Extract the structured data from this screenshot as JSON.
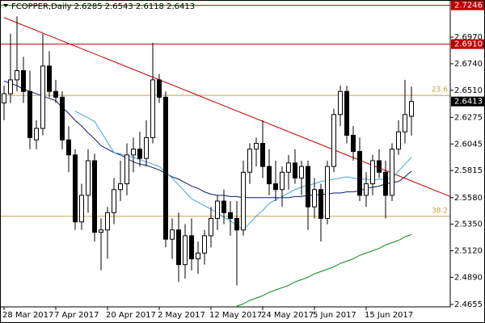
{
  "chart_data": {
    "type": "candlestick",
    "title": "FCOPPER,Daily  2.6285 2.6543 2.6118 2.6413",
    "categories": [
      "28 Mar 2017",
      null,
      null,
      null,
      null,
      null,
      null,
      null,
      "7 Apr 2017",
      null,
      null,
      null,
      null,
      null,
      null,
      null,
      "20 Apr 2017",
      null,
      null,
      null,
      null,
      null,
      null,
      null,
      "2 May 2017",
      null,
      null,
      null,
      null,
      null,
      null,
      null,
      "12 May 2017",
      null,
      null,
      null,
      null,
      null,
      null,
      null,
      "24 May 2017",
      null,
      null,
      null,
      null,
      null,
      null,
      null,
      "5 Jun 2017",
      null,
      null,
      null,
      null,
      null,
      null,
      null,
      "15 Jun 2017",
      null,
      null,
      null,
      null,
      null,
      null,
      null
    ],
    "open": [
      2.64,
      2.648,
      2.66,
      2.668,
      2.65,
      2.608,
      2.618,
      2.672,
      2.65,
      2.645,
      2.608,
      2.595,
      2.537,
      2.56,
      2.59,
      2.528,
      2.53,
      2.545,
      2.565,
      2.57,
      2.595,
      2.6,
      2.592,
      2.61,
      2.66,
      2.645,
      2.522,
      2.53,
      2.5,
      2.525,
      2.505,
      2.51,
      2.525,
      2.54,
      2.555,
      2.545,
      2.54,
      2.53,
      2.58,
      2.6,
      2.605,
      2.585,
      2.57,
      2.565,
      2.58,
      2.588,
      2.575,
      2.585,
      2.55,
      2.565,
      2.54,
      2.585,
      2.63,
      2.65,
      2.612,
      2.598,
      2.56,
      2.57,
      2.59,
      2.58,
      2.56,
      2.6,
      2.615,
      2.6285
    ],
    "high": [
      2.655,
      2.7,
      2.715,
      2.68,
      2.668,
      2.625,
      2.7,
      2.685,
      2.66,
      2.65,
      2.62,
      2.6,
      2.57,
      2.6,
      2.596,
      2.54,
      2.55,
      2.575,
      2.59,
      2.605,
      2.61,
      2.615,
      2.625,
      2.692,
      2.665,
      2.65,
      2.54,
      2.545,
      2.535,
      2.54,
      2.52,
      2.53,
      2.55,
      2.56,
      2.565,
      2.555,
      2.555,
      2.59,
      2.605,
      2.61,
      2.625,
      2.6,
      2.59,
      2.585,
      2.595,
      2.6,
      2.59,
      2.59,
      2.575,
      2.57,
      2.59,
      2.635,
      2.655,
      2.655,
      2.62,
      2.61,
      2.58,
      2.595,
      2.6,
      2.59,
      2.605,
      2.625,
      2.66,
      2.6543
    ],
    "low": [
      2.625,
      2.64,
      2.65,
      2.64,
      2.6,
      2.6,
      2.612,
      2.645,
      2.64,
      2.6,
      2.58,
      2.53,
      2.53,
      2.545,
      2.52,
      2.495,
      2.505,
      2.535,
      2.555,
      2.56,
      2.58,
      2.585,
      2.585,
      2.605,
      2.64,
      2.515,
      2.505,
      2.485,
      2.488,
      2.495,
      2.492,
      2.5,
      2.515,
      2.53,
      2.535,
      2.525,
      2.482,
      2.525,
      2.57,
      2.585,
      2.575,
      2.56,
      2.555,
      2.55,
      2.565,
      2.57,
      2.56,
      2.53,
      2.54,
      2.52,
      2.535,
      2.58,
      2.62,
      2.605,
      2.59,
      2.555,
      2.55,
      2.56,
      2.575,
      2.54,
      2.555,
      2.595,
      2.605,
      2.6118
    ],
    "close": [
      2.648,
      2.66,
      2.668,
      2.65,
      2.61,
      2.618,
      2.672,
      2.65,
      2.645,
      2.608,
      2.595,
      2.537,
      2.56,
      2.59,
      2.528,
      2.53,
      2.545,
      2.565,
      2.57,
      2.595,
      2.6,
      2.592,
      2.61,
      2.66,
      2.645,
      2.522,
      2.53,
      2.5,
      2.525,
      2.505,
      2.51,
      2.525,
      2.54,
      2.555,
      2.545,
      2.54,
      2.53,
      2.58,
      2.6,
      2.605,
      2.585,
      2.57,
      2.565,
      2.58,
      2.588,
      2.575,
      2.585,
      2.55,
      2.565,
      2.54,
      2.585,
      2.63,
      2.65,
      2.612,
      2.598,
      2.56,
      2.57,
      2.59,
      2.58,
      2.56,
      2.6,
      2.615,
      2.63,
      2.6413
    ],
    "up_color": "#ffffff",
    "down_color": "#000000",
    "overlays": [
      {
        "color": "#0a1a6e",
        "values": [
          2.659,
          2.657,
          2.655,
          2.652,
          2.65,
          2.648,
          2.646,
          2.644,
          2.642,
          2.636,
          2.631,
          2.625,
          2.62,
          2.614,
          2.609,
          2.603,
          2.6,
          2.597,
          2.595,
          2.592,
          2.589,
          2.587,
          2.586,
          2.584,
          2.582,
          2.579,
          2.576,
          2.574,
          2.571,
          2.568,
          2.566,
          2.563,
          2.561,
          2.56,
          2.56,
          2.559,
          2.559,
          2.558,
          2.558,
          2.558,
          2.558,
          2.558,
          2.558,
          2.558,
          2.558,
          2.559,
          2.559,
          2.56,
          2.56,
          2.561,
          2.561,
          2.562,
          2.562,
          2.563,
          2.563,
          2.564,
          2.566,
          2.567,
          2.568,
          2.57,
          2.571,
          2.572,
          2.576,
          2.581
        ]
      },
      {
        "color": "#40a8d8",
        "values": [
          null,
          null,
          null,
          null,
          null,
          null,
          null,
          null,
          null,
          null,
          null,
          2.633,
          2.63,
          2.627,
          2.624,
          2.615,
          2.606,
          2.597,
          2.596,
          2.594,
          2.593,
          2.591,
          2.589,
          2.587,
          2.585,
          2.58,
          2.575,
          2.569,
          2.563,
          2.557,
          2.554,
          2.551,
          2.548,
          2.545,
          2.541,
          2.538,
          2.534,
          2.53,
          2.536,
          2.542,
          2.547,
          2.553,
          2.556,
          2.559,
          2.562,
          2.565,
          2.567,
          2.569,
          2.57,
          2.572,
          2.573,
          2.574,
          2.575,
          2.576,
          2.575,
          2.574,
          2.574,
          2.573,
          2.574,
          2.574,
          2.575,
          2.581,
          2.587,
          2.593
        ]
      },
      {
        "color": "#0a8a1a",
        "values": [
          null,
          null,
          null,
          null,
          null,
          null,
          null,
          null,
          null,
          null,
          null,
          null,
          null,
          null,
          null,
          null,
          null,
          null,
          null,
          null,
          null,
          null,
          null,
          null,
          null,
          null,
          null,
          null,
          null,
          null,
          null,
          null,
          null,
          null,
          null,
          null,
          2.464,
          2.466,
          2.469,
          2.471,
          2.473,
          2.476,
          2.478,
          2.48,
          2.482,
          2.485,
          2.487,
          2.489,
          2.492,
          2.494,
          2.496,
          2.498,
          2.501,
          2.503,
          2.505,
          2.508,
          2.51,
          2.512,
          2.514,
          2.517,
          2.519,
          2.521,
          2.524,
          2.526
        ]
      }
    ],
    "trendline": {
      "color": "#c00000",
      "x": [
        0,
        69
      ],
      "values": [
        2.714,
        2.559
      ]
    },
    "levels": [
      {
        "value": 2.7246,
        "color": "#c00000",
        "boxed": true
      },
      {
        "value": 2.691,
        "label": "2.6910",
        "color": "#c00000",
        "boxed": true
      },
      {
        "value": 2.6466,
        "label": "23.6",
        "color": "#c8a04a"
      },
      {
        "value": 2.5418,
        "label": "38.2",
        "color": "#c8a04a"
      }
    ],
    "ylim": [
      2.4634,
      2.7292
    ],
    "yticks": [
      {
        "value": 2.697,
        "label": "2.6970"
      },
      {
        "value": 2.674,
        "label": "2.6740"
      },
      {
        "value": 2.651,
        "label": "2.6510"
      },
      2.6275,
      2.6045,
      2.5815,
      {
        "value": 2.558,
        "label": "2.5580"
      },
      {
        "value": 2.535,
        "label": "2.5350"
      },
      {
        "value": 2.512,
        "label": "2.5120"
      },
      {
        "value": 2.489,
        "label": "2.4890"
      },
      2.4655
    ]
  }
}
